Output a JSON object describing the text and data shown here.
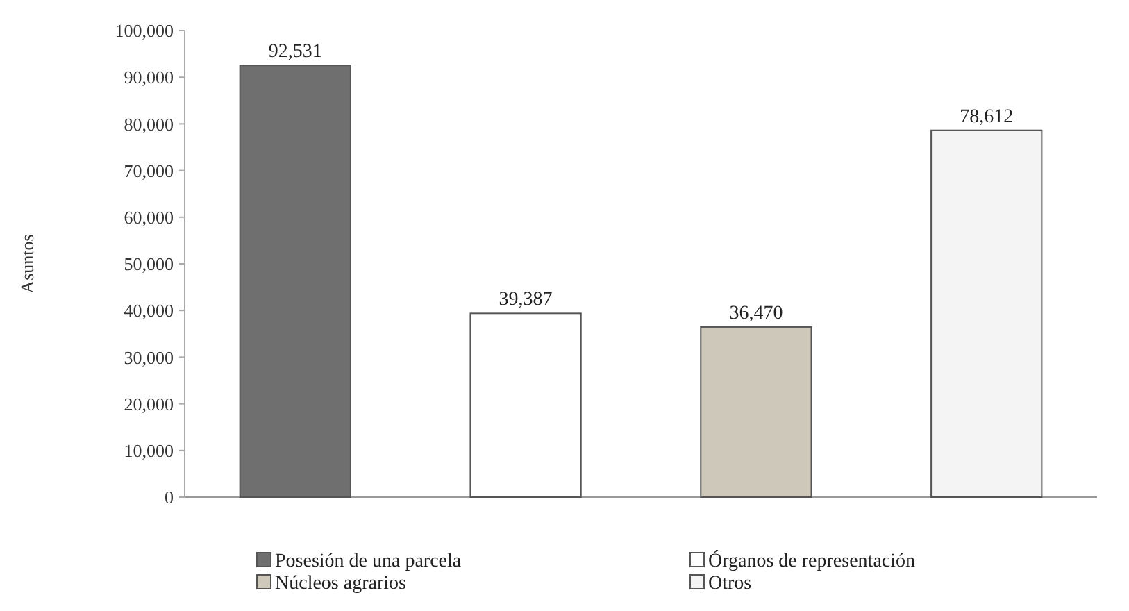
{
  "chart_data": {
    "type": "bar",
    "ylabel": "Asuntos",
    "categories": [
      null,
      null,
      null,
      null
    ],
    "series": [
      {
        "name": "Posesión de una parcela",
        "color": "#6f6f6f",
        "values": [
          92531,
          null,
          null,
          null
        ]
      },
      {
        "name": "Órganos de representación",
        "color": "#ffffff",
        "values": [
          null,
          39387,
          null,
          null
        ]
      },
      {
        "name": "Núcleos agrarios",
        "color": "#cdc8b9",
        "values": [
          null,
          null,
          36470,
          null
        ]
      },
      {
        "name": "Otros",
        "color": "#f4f4f4",
        "values": [
          null,
          null,
          null,
          78612
        ]
      }
    ],
    "ylim": [
      0,
      100000
    ],
    "yticks": [
      {
        "value": 0,
        "label": "0"
      },
      {
        "value": 10000,
        "label": "10,000"
      },
      {
        "value": 20000,
        "label": "20,000"
      },
      {
        "value": 30000,
        "label": "30,000"
      },
      {
        "value": 40000,
        "label": "40,000"
      },
      {
        "value": 50000,
        "label": "50,000"
      },
      {
        "value": 60000,
        "label": "60,000"
      },
      {
        "value": 70000,
        "label": "70,000"
      },
      {
        "value": 80000,
        "label": "80,000"
      },
      {
        "value": 90000,
        "label": "90,000"
      },
      {
        "value": 100000,
        "label": "100,000"
      }
    ],
    "value_labels": [
      "92,531",
      "39,387",
      "36,470",
      "78,612"
    ],
    "legend": "bottom",
    "grid": false
  }
}
